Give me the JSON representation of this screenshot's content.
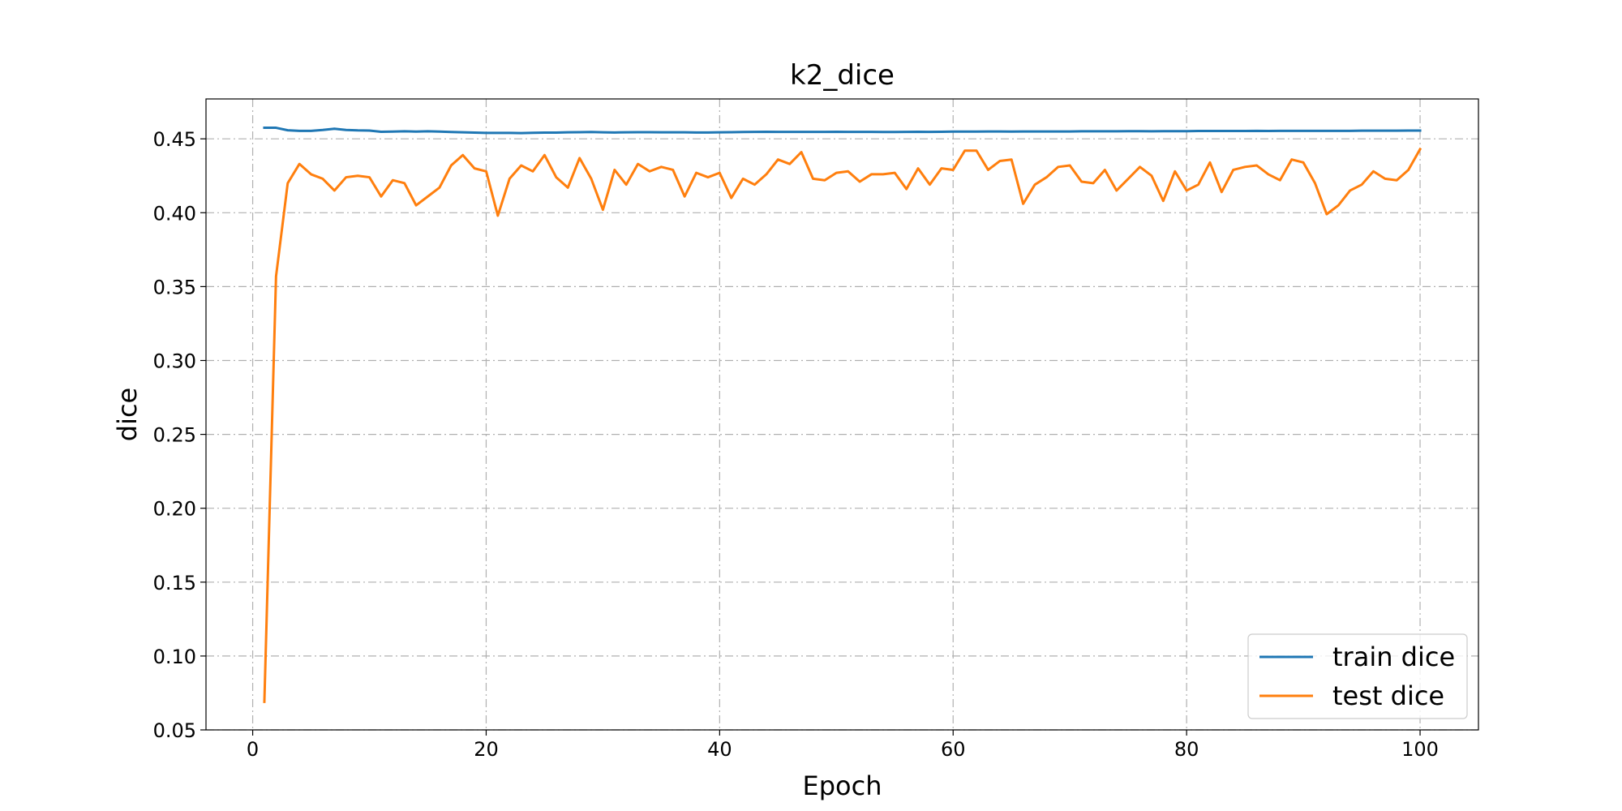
{
  "chart_data": {
    "type": "line",
    "title": "k2_dice",
    "xlabel": "Epoch",
    "ylabel": "dice",
    "xlim": [
      -4,
      105
    ],
    "ylim": [
      0.05,
      0.477
    ],
    "xticks": [
      0,
      20,
      40,
      60,
      80,
      100
    ],
    "yticks": [
      0.05,
      0.1,
      0.15,
      0.2,
      0.25,
      0.3,
      0.35,
      0.4,
      0.45
    ],
    "ytick_labels": [
      "0.05",
      "0.10",
      "0.15",
      "0.20",
      "0.25",
      "0.30",
      "0.35",
      "0.40",
      "0.45"
    ],
    "grid": true,
    "legend_position": "lower-right",
    "series": [
      {
        "name": "train dice",
        "color": "#1f77b4",
        "x": [
          1,
          2,
          3,
          4,
          5,
          6,
          7,
          8,
          9,
          10,
          11,
          12,
          13,
          14,
          15,
          16,
          17,
          18,
          19,
          20,
          21,
          22,
          23,
          24,
          25,
          26,
          27,
          28,
          29,
          30,
          31,
          32,
          33,
          34,
          35,
          36,
          37,
          38,
          39,
          40,
          41,
          42,
          43,
          44,
          45,
          46,
          47,
          48,
          49,
          50,
          51,
          52,
          53,
          54,
          55,
          56,
          57,
          58,
          59,
          60,
          61,
          62,
          63,
          64,
          65,
          66,
          67,
          68,
          69,
          70,
          71,
          72,
          73,
          74,
          75,
          76,
          77,
          78,
          79,
          80,
          81,
          82,
          83,
          84,
          85,
          86,
          87,
          88,
          89,
          90,
          91,
          92,
          93,
          94,
          95,
          96,
          97,
          98,
          99,
          100
        ],
        "values": [
          0.4575,
          0.4575,
          0.4558,
          0.4554,
          0.4554,
          0.456,
          0.4568,
          0.456,
          0.4557,
          0.4556,
          0.4548,
          0.4549,
          0.4551,
          0.4549,
          0.4551,
          0.4549,
          0.4546,
          0.4544,
          0.4542,
          0.454,
          0.454,
          0.454,
          0.4539,
          0.4541,
          0.4542,
          0.4542,
          0.4544,
          0.4545,
          0.4546,
          0.4544,
          0.4543,
          0.4544,
          0.4545,
          0.4545,
          0.4544,
          0.4544,
          0.4544,
          0.4543,
          0.4543,
          0.4544,
          0.4545,
          0.4546,
          0.4547,
          0.4548,
          0.4547,
          0.4547,
          0.4547,
          0.4547,
          0.4547,
          0.4548,
          0.4547,
          0.4547,
          0.4547,
          0.4546,
          0.4546,
          0.4547,
          0.4548,
          0.4547,
          0.4548,
          0.4549,
          0.4549,
          0.4549,
          0.455,
          0.455,
          0.4549,
          0.455,
          0.455,
          0.455,
          0.455,
          0.455,
          0.4551,
          0.4551,
          0.4551,
          0.4551,
          0.4552,
          0.4552,
          0.4551,
          0.4552,
          0.4552,
          0.4552,
          0.4553,
          0.4553,
          0.4553,
          0.4553,
          0.4553,
          0.4554,
          0.4553,
          0.4554,
          0.4554,
          0.4554,
          0.4554,
          0.4554,
          0.4554,
          0.4554,
          0.4555,
          0.4555,
          0.4555,
          0.4555,
          0.4556,
          0.4556
        ]
      },
      {
        "name": "test dice",
        "color": "#ff7f0e",
        "x": [
          1,
          2,
          3,
          4,
          5,
          6,
          7,
          8,
          9,
          10,
          11,
          12,
          13,
          14,
          15,
          16,
          17,
          18,
          19,
          20,
          21,
          22,
          23,
          24,
          25,
          26,
          27,
          28,
          29,
          30,
          31,
          32,
          33,
          34,
          35,
          36,
          37,
          38,
          39,
          40,
          41,
          42,
          43,
          44,
          45,
          46,
          47,
          48,
          49,
          50,
          51,
          52,
          53,
          54,
          55,
          56,
          57,
          58,
          59,
          60,
          61,
          62,
          63,
          64,
          65,
          66,
          67,
          68,
          69,
          70,
          71,
          72,
          73,
          74,
          75,
          76,
          77,
          78,
          79,
          80,
          81,
          82,
          83,
          84,
          85,
          86,
          87,
          88,
          89,
          90,
          91,
          92,
          93,
          94,
          95,
          96,
          97,
          98,
          99,
          100
        ],
        "values": [
          0.069,
          0.357,
          0.42,
          0.433,
          0.426,
          0.423,
          0.415,
          0.424,
          0.425,
          0.424,
          0.411,
          0.422,
          0.42,
          0.405,
          0.411,
          0.417,
          0.432,
          0.439,
          0.43,
          0.428,
          0.398,
          0.423,
          0.432,
          0.428,
          0.439,
          0.424,
          0.417,
          0.437,
          0.423,
          0.402,
          0.429,
          0.419,
          0.433,
          0.428,
          0.431,
          0.429,
          0.411,
          0.427,
          0.424,
          0.427,
          0.41,
          0.423,
          0.419,
          0.426,
          0.436,
          0.433,
          0.441,
          0.423,
          0.422,
          0.427,
          0.428,
          0.421,
          0.426,
          0.426,
          0.427,
          0.416,
          0.43,
          0.419,
          0.43,
          0.429,
          0.442,
          0.442,
          0.429,
          0.435,
          0.436,
          0.406,
          0.419,
          0.424,
          0.431,
          0.432,
          0.421,
          0.42,
          0.429,
          0.415,
          0.423,
          0.431,
          0.425,
          0.408,
          0.428,
          0.415,
          0.419,
          0.434,
          0.414,
          0.429,
          0.431,
          0.432,
          0.426,
          0.422,
          0.436,
          0.434,
          0.42,
          0.399,
          0.405,
          0.415,
          0.419,
          0.428,
          0.423,
          0.422,
          0.429,
          0.443
        ]
      }
    ]
  }
}
